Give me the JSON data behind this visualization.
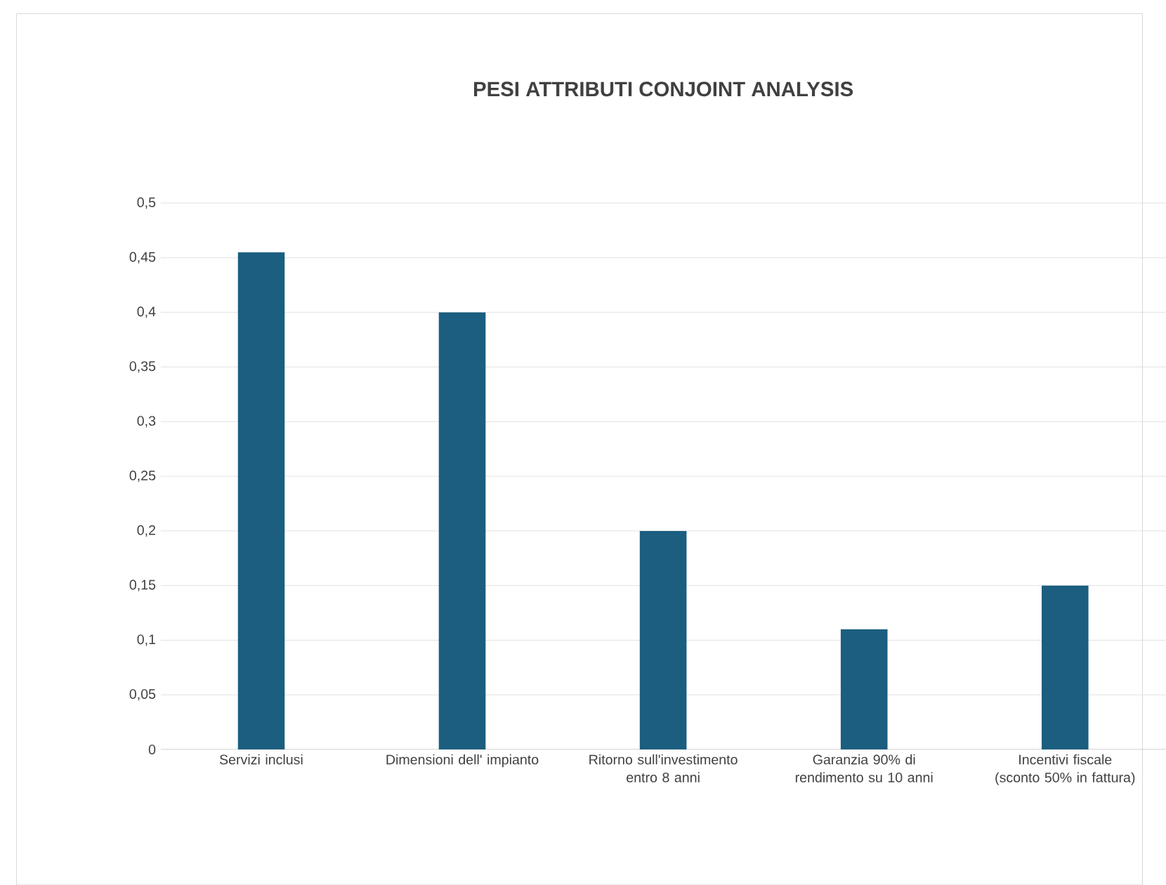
{
  "chart_data": {
    "type": "bar",
    "title": "PESI ATTRIBUTI CONJOINT ANALYSIS",
    "categories": [
      "Servizi inclusi",
      "Dimensioni dell' impianto",
      "Ritorno sull'investimento entro 8 anni",
      "Garanzia 90% di rendimento su 10 anni",
      "Incentivi fiscale (sconto 50% in fattura)"
    ],
    "values": [
      0.455,
      0.4,
      0.2,
      0.11,
      0.15
    ],
    "color": "#1b5e7f",
    "ylim": [
      0,
      0.5
    ],
    "yticks": [
      {
        "value": 0,
        "label": "0"
      },
      {
        "value": 0.05,
        "label": "0,05"
      },
      {
        "value": 0.1,
        "label": "0,1"
      },
      {
        "value": 0.15,
        "label": "0,15"
      },
      {
        "value": 0.2,
        "label": "0,2"
      },
      {
        "value": 0.25,
        "label": "0,25"
      },
      {
        "value": 0.3,
        "label": "0,3"
      },
      {
        "value": 0.35,
        "label": "0,35"
      },
      {
        "value": 0.4,
        "label": "0,4"
      },
      {
        "value": 0.45,
        "label": "0,45"
      },
      {
        "value": 0.5,
        "label": "0,5"
      }
    ],
    "grid": "y"
  }
}
